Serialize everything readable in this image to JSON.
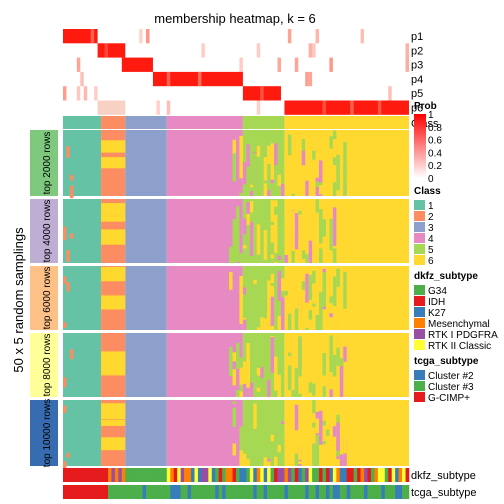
{
  "chart_data": {
    "type": "heatmap",
    "title": "membership heatmap, k = 6",
    "ylabel": "50 x 5 random samplings",
    "n_columns": 100,
    "rows_top": [
      {
        "name": "p1",
        "cols": [
          0,
          10
        ]
      },
      {
        "name": "p2",
        "cols": [
          10,
          18
        ]
      },
      {
        "name": "p3",
        "cols": [
          17,
          26
        ]
      },
      {
        "name": "p4",
        "cols": [
          26,
          52
        ]
      },
      {
        "name": "p5",
        "cols": [
          52,
          63
        ]
      },
      {
        "name": "p6",
        "cols": [
          64,
          100
        ]
      }
    ],
    "class_row_label": "Class",
    "class_segments": [
      {
        "class": "1",
        "cols": [
          0,
          11
        ]
      },
      {
        "class": "2",
        "cols": [
          11,
          18
        ]
      },
      {
        "class": "3",
        "cols": [
          18,
          30
        ]
      },
      {
        "class": "4",
        "cols": [
          30,
          52
        ]
      },
      {
        "class": "5",
        "cols": [
          52,
          64
        ]
      },
      {
        "class": "6",
        "cols": [
          64,
          100
        ]
      }
    ],
    "row_groups": [
      {
        "label": "top 2000 rows",
        "color": "#7FC97F"
      },
      {
        "label": "top 4000 rows",
        "color": "#BEAED4"
      },
      {
        "label": "top 6000 rows",
        "color": "#FDC086"
      },
      {
        "label": "top 8000 rows",
        "color": "#FFFF99"
      },
      {
        "label": "top 10000 rows",
        "color": "#386CB0"
      }
    ],
    "prob_legend": {
      "title": "Prob",
      "ticks": [
        "1",
        "0.8",
        "0.6",
        "0.4",
        "0.2",
        "0"
      ],
      "low": "#FFFFFF",
      "high": "#FF0000"
    },
    "class_legend": {
      "title": "Class",
      "items": [
        {
          "label": "1",
          "color": "#66C2A5"
        },
        {
          "label": "2",
          "color": "#FC8D62"
        },
        {
          "label": "3",
          "color": "#8DA0CB"
        },
        {
          "label": "4",
          "color": "#E78AC3"
        },
        {
          "label": "5",
          "color": "#A6D854"
        },
        {
          "label": "6",
          "color": "#FFD92F"
        }
      ]
    },
    "dkfz_legend": {
      "title": "dkfz_subtype",
      "items": [
        {
          "label": "G34",
          "color": "#4DAF4A"
        },
        {
          "label": "IDH",
          "color": "#E41A1C"
        },
        {
          "label": "K27",
          "color": "#377EB8"
        },
        {
          "label": "Mesenchymal",
          "color": "#FF7F00"
        },
        {
          "label": "RTK I PDGFRA",
          "color": "#984EA3"
        },
        {
          "label": "RTK II Classic",
          "color": "#FFFF33"
        }
      ]
    },
    "tcga_legend": {
      "title": "tcga_subtype",
      "items": [
        {
          "label": "Cluster #2",
          "color": "#377EB8"
        },
        {
          "label": "Cluster #3",
          "color": "#4DAF4A"
        },
        {
          "label": "G-CIMP+",
          "color": "#E41A1C"
        }
      ]
    },
    "annotation_rows": [
      "dkfz_subtype",
      "tcga_subtype"
    ]
  }
}
